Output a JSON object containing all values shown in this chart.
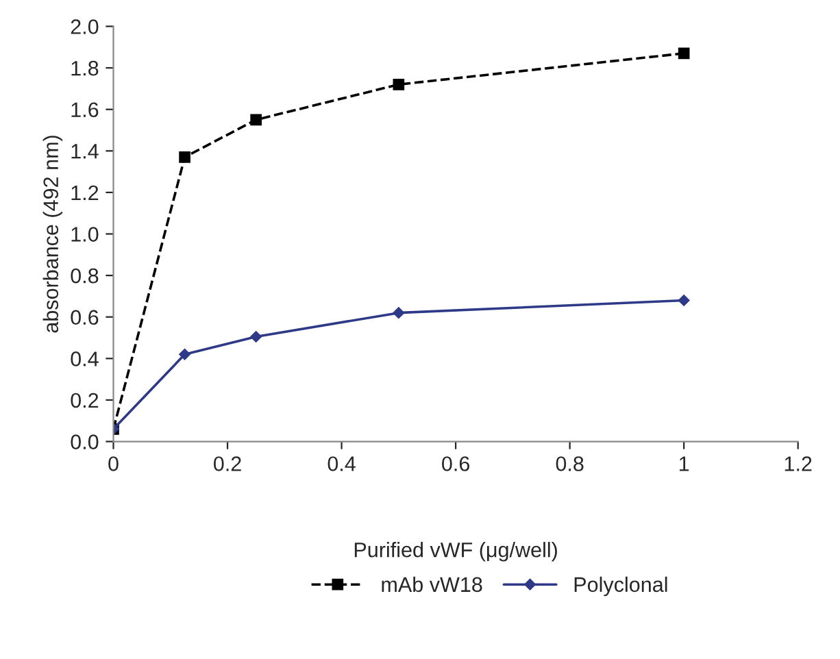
{
  "chart_data": {
    "type": "line",
    "xlabel": "Purified vWF (μg/well)",
    "ylabel": "absorbance (492 nm)",
    "x": [
      0,
      0.125,
      0.25,
      0.5,
      1
    ],
    "series": [
      {
        "name": "mAb vW18",
        "color": "#000000",
        "values": [
          0.06,
          1.37,
          1.55,
          1.72,
          1.87
        ],
        "marker": "square",
        "line_style": "dashed"
      },
      {
        "name": "Polyclonal",
        "color": "#2e3a87",
        "values": [
          0.06,
          0.42,
          0.505,
          0.62,
          0.68
        ],
        "marker": "diamond",
        "line_style": "solid"
      }
    ],
    "xlim": [
      0,
      1.2
    ],
    "xticks": [
      0,
      0.2,
      0.4,
      0.6,
      0.8,
      1,
      1.2
    ],
    "ylim": [
      0,
      2.0
    ],
    "yticks": [
      {
        "value": 0,
        "label": "0.0"
      },
      0.2,
      0.4,
      0.6,
      0.8,
      {
        "value": 1.0,
        "label": "1.0"
      },
      1.2,
      1.4,
      1.6,
      1.8,
      {
        "value": 2.0,
        "label": "2.0"
      }
    ],
    "grid": false,
    "legend": "bottom"
  }
}
